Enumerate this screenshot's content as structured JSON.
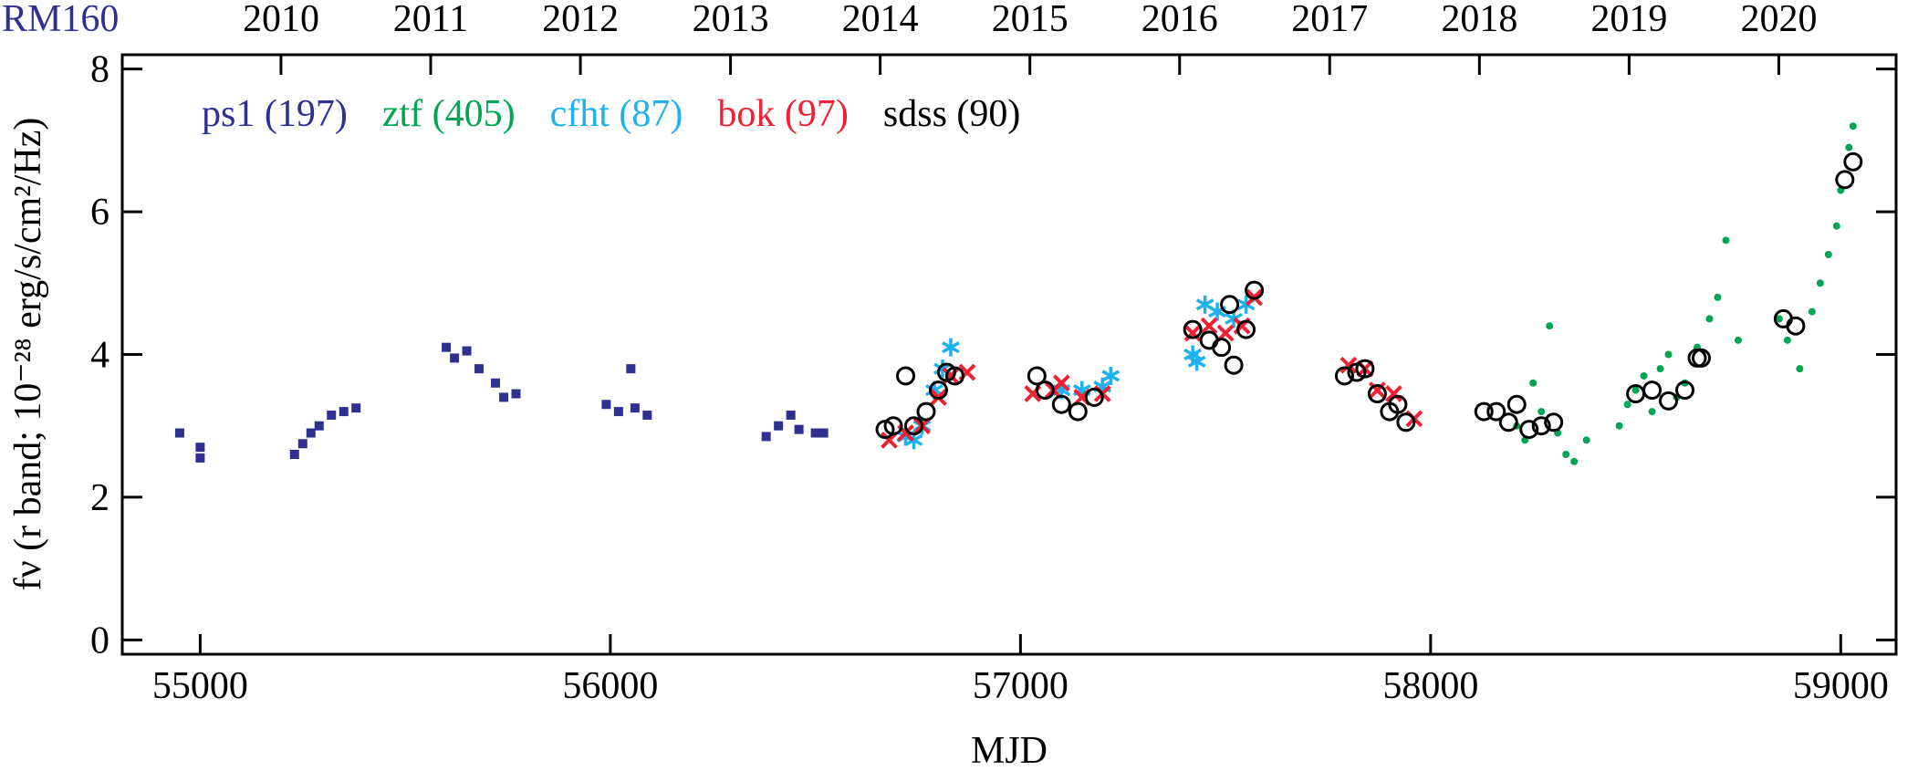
{
  "chart_data": {
    "type": "scatter",
    "title": "RM160",
    "x_label": "MJD",
    "y_label": "fν (r band; 10⁻²⁸ erg/s/cm²/Hz)",
    "xlim": [
      54810,
      59135
    ],
    "ylim": [
      -0.2,
      8.2
    ],
    "xticks": [
      55000,
      56000,
      57000,
      58000,
      59000
    ],
    "yticks": [
      0,
      2,
      4,
      6,
      8
    ],
    "top_xticks": [
      {
        "value": 55197,
        "label": "2010"
      },
      {
        "value": 55562,
        "label": "2011"
      },
      {
        "value": 55927,
        "label": "2012"
      },
      {
        "value": 56293,
        "label": "2013"
      },
      {
        "value": 56658,
        "label": "2014"
      },
      {
        "value": 57023,
        "label": "2015"
      },
      {
        "value": 57388,
        "label": "2016"
      },
      {
        "value": 57754,
        "label": "2017"
      },
      {
        "value": 58119,
        "label": "2018"
      },
      {
        "value": 58484,
        "label": "2019"
      },
      {
        "value": 58849,
        "label": "2020"
      }
    ],
    "title_color": "#2e3192",
    "series": [
      {
        "name": "ps1 (197)",
        "color": "#2e3192",
        "marker": "square",
        "x": [
          54950,
          55000,
          55000,
          55230,
          55250,
          55270,
          55290,
          55320,
          55350,
          55380,
          55600,
          55620,
          55650,
          55680,
          55720,
          55740,
          55770,
          55990,
          56020,
          56050,
          56060,
          56090,
          56380,
          56410,
          56440,
          56460,
          56500,
          56520
        ],
        "values": [
          2.9,
          2.7,
          2.55,
          2.6,
          2.75,
          2.9,
          3.0,
          3.15,
          3.2,
          3.25,
          4.1,
          3.95,
          4.05,
          3.8,
          3.6,
          3.4,
          3.45,
          3.3,
          3.2,
          3.8,
          3.25,
          3.15,
          2.85,
          3.0,
          3.15,
          2.95,
          2.9,
          2.9
        ]
      },
      {
        "name": "ztf (405)",
        "color": "#00a651",
        "marker": "dot",
        "x": [
          58210,
          58230,
          58250,
          58270,
          58290,
          58310,
          58330,
          58350,
          58380,
          58460,
          58480,
          58500,
          58520,
          58540,
          58560,
          58580,
          58600,
          58620,
          58650,
          58680,
          58700,
          58720,
          58750,
          58850,
          58870,
          58900,
          58930,
          58950,
          58970,
          58990,
          59000,
          59020,
          59030
        ],
        "values": [
          3.0,
          2.8,
          3.6,
          3.2,
          4.4,
          2.9,
          2.6,
          2.5,
          2.8,
          3.0,
          3.3,
          3.5,
          3.7,
          3.2,
          3.8,
          4.0,
          3.4,
          3.6,
          4.1,
          4.5,
          4.8,
          5.6,
          4.2,
          4.5,
          4.2,
          3.8,
          4.6,
          5.0,
          5.4,
          5.8,
          6.3,
          6.9,
          7.2
        ]
      },
      {
        "name": "cfht (87)",
        "color": "#1fb1ee",
        "marker": "asterisk",
        "x": [
          56720,
          56740,
          56760,
          56790,
          56810,
          56830,
          57100,
          57150,
          57200,
          57220,
          57420,
          57430,
          57450,
          57480,
          57520,
          57550
        ],
        "values": [
          2.85,
          2.8,
          3.0,
          3.5,
          3.8,
          4.1,
          3.5,
          3.5,
          3.55,
          3.7,
          4.0,
          3.9,
          4.7,
          4.6,
          4.5,
          4.7
        ]
      },
      {
        "name": "bok (97)",
        "color": "#ee2233",
        "marker": "cross",
        "x": [
          56680,
          56720,
          56760,
          56800,
          56830,
          56870,
          57030,
          57080,
          57100,
          57150,
          57200,
          57420,
          57460,
          57500,
          57540,
          57570,
          57800,
          57840,
          57870,
          57910,
          57960
        ],
        "values": [
          2.8,
          2.9,
          3.0,
          3.4,
          3.7,
          3.75,
          3.45,
          3.5,
          3.6,
          3.4,
          3.45,
          4.3,
          4.4,
          4.3,
          4.4,
          4.8,
          3.85,
          3.8,
          3.5,
          3.45,
          3.1
        ]
      },
      {
        "name": "sdss (90)",
        "color": "#000000",
        "marker": "open-circle",
        "x": [
          56670,
          56690,
          56720,
          56740,
          56770,
          56800,
          56820,
          56840,
          57040,
          57060,
          57100,
          57140,
          57180,
          57420,
          57460,
          57490,
          57510,
          57520,
          57550,
          57570,
          57790,
          57820,
          57840,
          57870,
          57900,
          57920,
          57940,
          58130,
          58160,
          58190,
          58210,
          58240,
          58270,
          58300,
          58500,
          58540,
          58580,
          58620,
          58650,
          58660,
          58860,
          58890,
          59010,
          59030
        ],
        "values": [
          2.95,
          3.0,
          3.7,
          3.0,
          3.2,
          3.5,
          3.75,
          3.7,
          3.7,
          3.5,
          3.3,
          3.2,
          3.4,
          4.35,
          4.2,
          4.1,
          4.7,
          3.85,
          4.35,
          4.9,
          3.7,
          3.75,
          3.8,
          3.45,
          3.2,
          3.3,
          3.05,
          3.2,
          3.2,
          3.05,
          3.3,
          2.95,
          3.0,
          3.05,
          3.45,
          3.5,
          3.35,
          3.5,
          3.95,
          3.95,
          4.5,
          4.4,
          6.45,
          6.7
        ]
      }
    ]
  }
}
